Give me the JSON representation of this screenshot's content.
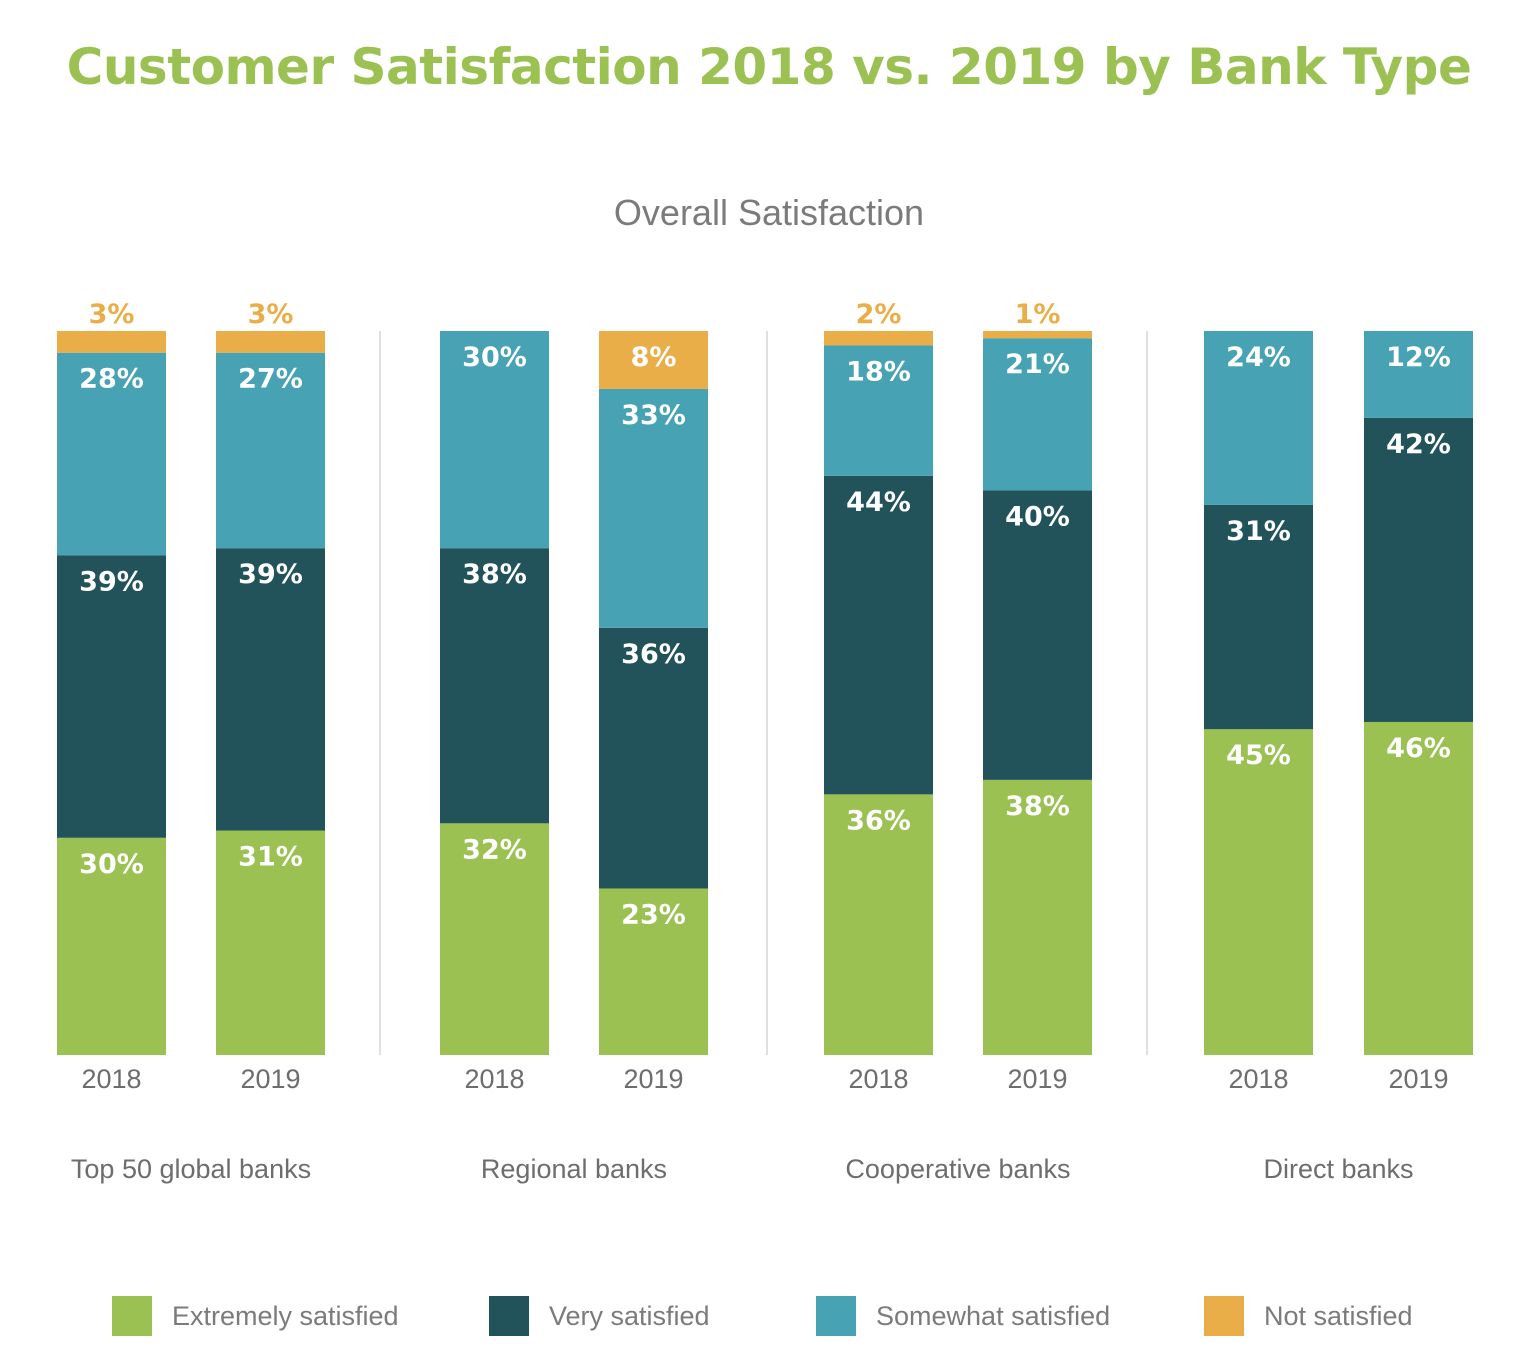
{
  "chart_data": {
    "type": "bar",
    "stacked": true,
    "title": "Customer Satisfaction 2018 vs. 2019 by Bank Type",
    "subtitle": "Overall Satisfaction",
    "groups": [
      "Top 50 global banks",
      "Regional banks",
      "Cooperative banks",
      "Direct banks"
    ],
    "categories": [
      "2018",
      "2019"
    ],
    "series": [
      {
        "name": "Extremely satisfied",
        "color": "#9bc152",
        "values": [
          [
            30,
            31
          ],
          [
            32,
            23
          ],
          [
            36,
            38
          ],
          [
            45,
            46
          ]
        ]
      },
      {
        "name": "Very satisfied",
        "color": "#22525a",
        "values": [
          [
            39,
            39
          ],
          [
            38,
            36
          ],
          [
            44,
            40
          ],
          [
            31,
            42
          ]
        ]
      },
      {
        "name": "Somewhat satisfied",
        "color": "#47a2b4",
        "values": [
          [
            28,
            27
          ],
          [
            30,
            33
          ],
          [
            18,
            21
          ],
          [
            24,
            12
          ]
        ]
      },
      {
        "name": "Not satisfied",
        "color": "#e9ae48",
        "values": [
          [
            3,
            3
          ],
          [
            0,
            8
          ],
          [
            2,
            1
          ],
          [
            0,
            0
          ]
        ]
      }
    ],
    "value_suffix": "%",
    "ylim": [
      0,
      100
    ],
    "grid": false,
    "legend_position": "bottom"
  }
}
